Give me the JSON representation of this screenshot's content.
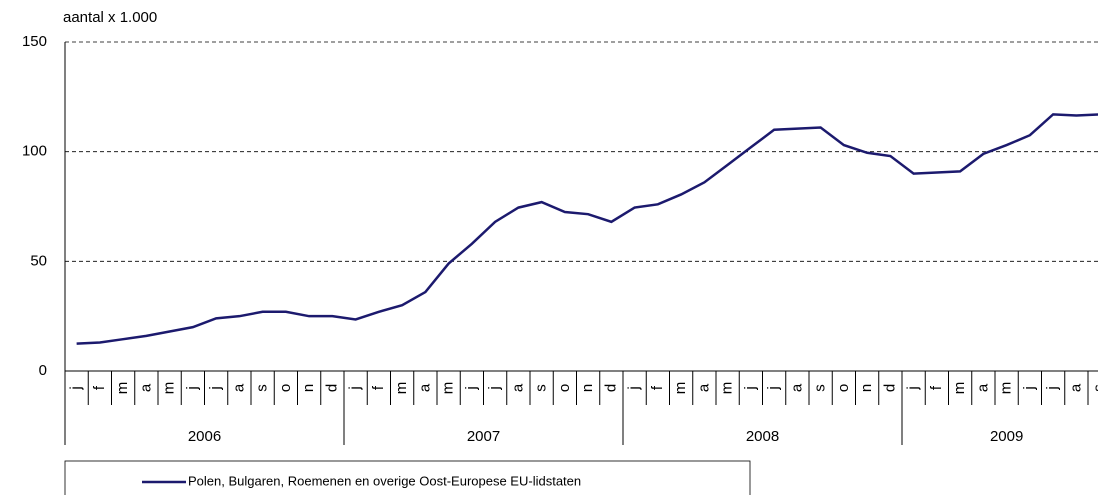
{
  "chart_data": {
    "type": "line",
    "y_label": "aantal x 1.000",
    "groups": [
      {
        "label": "2006",
        "categories": [
          "j",
          "f",
          "m",
          "a",
          "m",
          "j",
          "j",
          "a",
          "s",
          "o",
          "n",
          "d"
        ]
      },
      {
        "label": "2007",
        "categories": [
          "j",
          "f",
          "m",
          "a",
          "m",
          "j",
          "j",
          "a",
          "s",
          "o",
          "n",
          "d"
        ]
      },
      {
        "label": "2008",
        "categories": [
          "j",
          "f",
          "m",
          "a",
          "m",
          "j",
          "j",
          "a",
          "s",
          "o",
          "n",
          "d"
        ]
      },
      {
        "label": "2009",
        "categories": [
          "j",
          "f",
          "m",
          "a",
          "m",
          "j",
          "j",
          "a",
          "s"
        ]
      }
    ],
    "series": [
      {
        "name": "Polen, Bulgaren, Roemenen en overige Oost-Europese EU-lidstaten",
        "color": "#1c1a6e",
        "values": [
          12.5,
          13,
          14.5,
          16,
          18,
          20,
          24,
          25,
          27,
          27,
          25,
          25,
          23.5,
          27,
          30,
          36,
          49,
          58,
          68,
          74.5,
          77,
          72.5,
          71.5,
          68,
          74.5,
          76,
          80.5,
          86,
          94,
          102,
          110,
          110.5,
          111,
          103,
          99.5,
          98,
          90,
          90.5,
          91,
          99,
          103,
          107.5,
          117,
          116.5,
          117
        ]
      }
    ],
    "ylim": [
      0,
      150
    ],
    "yticks": [
      0,
      50,
      100,
      150
    ],
    "grid": true
  }
}
